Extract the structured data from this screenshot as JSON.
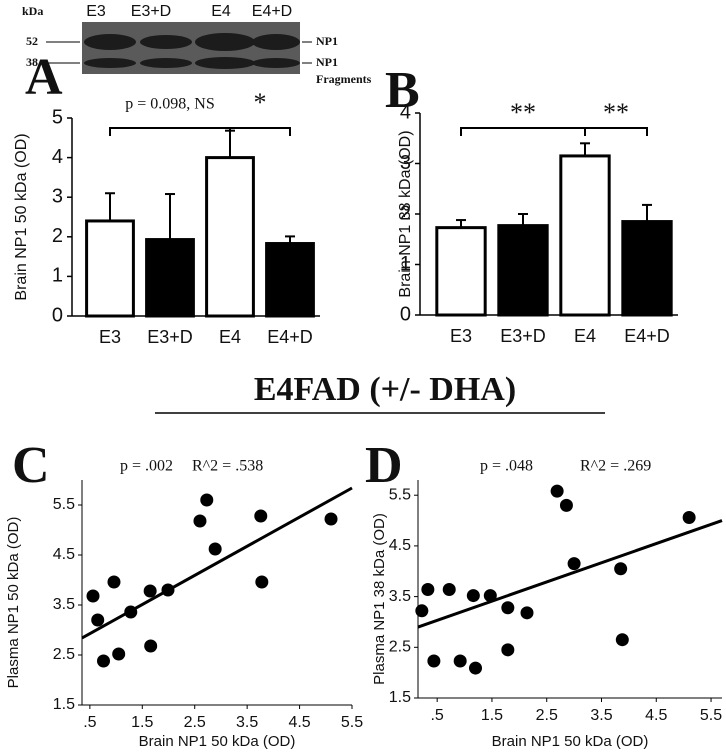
{
  "blot": {
    "unit": "kDa",
    "lanes": [
      "E3",
      "E3+D",
      "E4",
      "E4+D"
    ],
    "markers": [
      52,
      38
    ],
    "bands": [
      "NP1",
      "NP1"
    ],
    "fragments": "Fragments"
  },
  "heading": "E4FAD (+/- DHA)",
  "chart_data": [
    {
      "type": "bar",
      "panel": "A",
      "ylabel": "Brain NP1 50 kDa (OD)",
      "categories": [
        "E3",
        "E3+D",
        "E4",
        "E4+D"
      ],
      "values": [
        2.4,
        1.93,
        4.0,
        1.83
      ],
      "errors": [
        0.7,
        1.15,
        0.68,
        0.18
      ],
      "colors": [
        "#ffffff",
        "#000000",
        "#ffffff",
        "#000000"
      ],
      "ylim": [
        0,
        5
      ],
      "yticks": [
        0,
        1,
        2,
        3,
        4,
        5
      ],
      "annotations": [
        "p = 0.098, NS",
        "*"
      ]
    },
    {
      "type": "bar",
      "panel": "B",
      "ylabel": "Brain NP1 38 kDa (OD)",
      "categories": [
        "E3",
        "E3+D",
        "E4",
        "E4+D"
      ],
      "values": [
        1.73,
        1.77,
        3.15,
        1.85
      ],
      "errors": [
        0.15,
        0.23,
        0.25,
        0.33
      ],
      "colors": [
        "#ffffff",
        "#000000",
        "#ffffff",
        "#000000"
      ],
      "ylim": [
        0,
        4
      ],
      "yticks": [
        0,
        1,
        2,
        3,
        4
      ],
      "annotations": [
        "**",
        "**"
      ]
    },
    {
      "type": "scatter",
      "panel": "C",
      "xlabel": "Brain NP1 50 kDa (OD)",
      "ylabel": "Plasma NP1 50 kDa (OD)",
      "color": "#000000",
      "x": [
        0.56,
        0.65,
        0.76,
        0.96,
        1.05,
        1.28,
        1.65,
        1.66,
        1.99,
        2.6,
        2.73,
        2.89,
        3.76,
        3.78,
        5.1
      ],
      "values": [
        3.68,
        3.2,
        2.38,
        3.96,
        2.52,
        3.36,
        3.78,
        2.68,
        3.8,
        5.18,
        5.6,
        4.62,
        5.28,
        3.96,
        5.22
      ],
      "fit": {
        "x": [
          0.35,
          5.5
        ],
        "values": [
          2.84,
          5.84
        ]
      },
      "xlim": [
        0.35,
        5.5
      ],
      "ylim": [
        1.5,
        6.0
      ],
      "xticks": [
        {
          "value": 0.5,
          "label": ".5"
        },
        1.5,
        2.5,
        3.5,
        4.5,
        5.5
      ],
      "yticks": [
        1.5,
        2.5,
        3.5,
        4.5,
        5.5
      ],
      "annotations": [
        "p = .002",
        "R^2 = .538"
      ]
    },
    {
      "type": "scatter",
      "panel": "D",
      "xlabel": "Brain NP1 50 kDa (OD)",
      "ylabel": "Plasma NP1 38 kDa (OD)",
      "color": "#000000",
      "x": [
        0.22,
        0.33,
        0.44,
        0.72,
        0.92,
        1.2,
        1.16,
        1.47,
        1.79,
        1.79,
        2.14,
        2.69,
        2.86,
        3.0,
        3.85,
        3.88,
        5.1
      ],
      "values": [
        3.22,
        3.64,
        2.23,
        3.64,
        2.23,
        2.09,
        3.52,
        3.52,
        3.28,
        2.45,
        3.18,
        5.58,
        5.3,
        4.15,
        4.05,
        2.65,
        5.06
      ],
      "fit": {
        "x": [
          0.15,
          5.7
        ],
        "values": [
          2.9,
          5.0
        ]
      },
      "xlim": [
        0.15,
        5.7
      ],
      "ylim": [
        1.5,
        5.8
      ],
      "xticks": [
        {
          "value": 0.5,
          "label": ".5"
        },
        1.5,
        2.5,
        3.5,
        4.5,
        5.5
      ],
      "yticks": [
        1.5,
        2.5,
        3.5,
        4.5,
        5.5
      ],
      "annotations": [
        "p = .048",
        "R^2 = .269"
      ]
    }
  ]
}
